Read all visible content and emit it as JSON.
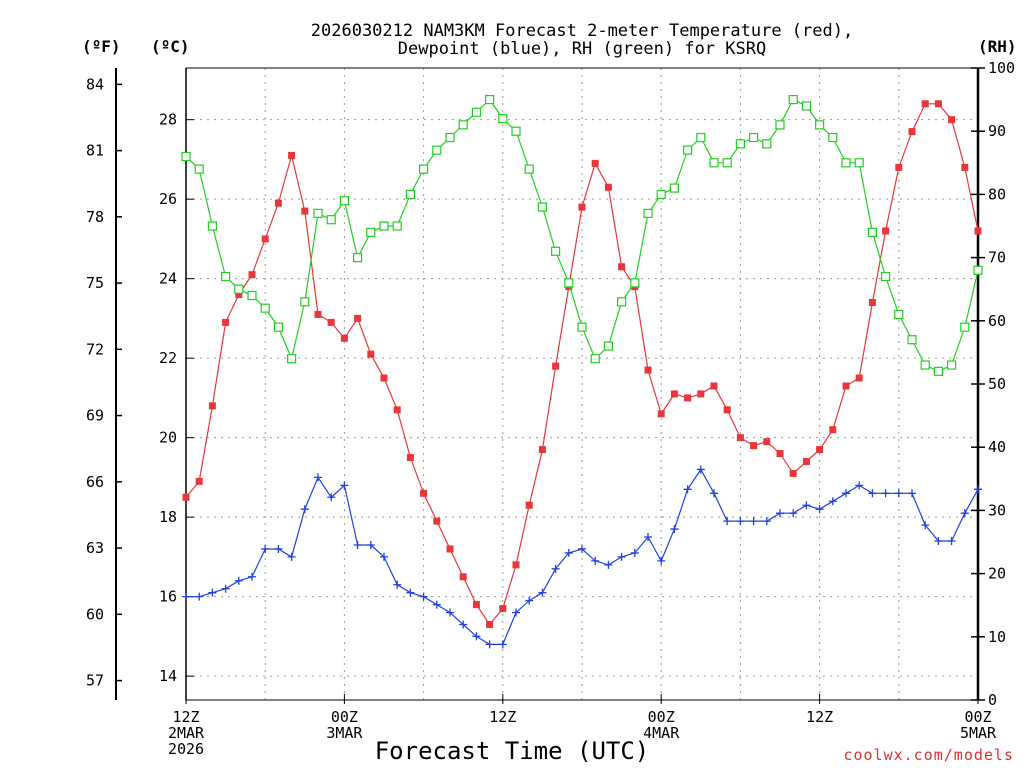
{
  "chart_data": {
    "type": "line",
    "title_lines": [
      "2026030212 NAM3KM Forecast 2-meter Temperature (red),",
      "Dewpoint (blue), RH (green) for KSRQ"
    ],
    "left_unit_f": "(ºF)",
    "left_unit_c": "(ºC)",
    "right_unit": "(RH)",
    "xlabel": "Forecast Time (UTC)",
    "credit": "coolwx.com/models",
    "x_ticks": [
      {
        "hour": 0,
        "lines": [
          "12Z",
          "2MAR",
          "2026"
        ]
      },
      {
        "hour": 12,
        "lines": [
          "00Z",
          "3MAR"
        ]
      },
      {
        "hour": 24,
        "lines": [
          "12Z"
        ]
      },
      {
        "hour": 36,
        "lines": [
          "00Z",
          "4MAR"
        ]
      },
      {
        "hour": 48,
        "lines": [
          "12Z"
        ]
      },
      {
        "hour": 60,
        "lines": [
          "00Z",
          "5MAR"
        ]
      }
    ],
    "xlim": [
      0,
      60
    ],
    "ylim_c": [
      13.4,
      29.3
    ],
    "ylim_rh": [
      0,
      100
    ],
    "f_ticks": [
      57,
      60,
      63,
      66,
      69,
      72,
      75,
      78,
      81,
      84
    ],
    "c_ticks": [
      14,
      16,
      18,
      20,
      22,
      24,
      26,
      28
    ],
    "rh_ticks": [
      0,
      10,
      20,
      30,
      40,
      50,
      60,
      70,
      80,
      90,
      100
    ],
    "series": [
      {
        "name": "2-meter Temperature",
        "unit": "C",
        "color": "#e8373a",
        "marker": "filled-square",
        "values": [
          18.5,
          18.9,
          20.8,
          22.9,
          23.6,
          24.1,
          25.0,
          25.9,
          27.1,
          25.7,
          23.1,
          22.9,
          22.5,
          23.0,
          22.1,
          21.5,
          20.7,
          19.5,
          18.6,
          17.9,
          17.2,
          16.5,
          15.8,
          15.3,
          15.7,
          16.8,
          18.3,
          19.7,
          21.8,
          23.8,
          25.8,
          26.9,
          26.3,
          24.3,
          23.8,
          21.7,
          20.6,
          21.1,
          21.0,
          21.1,
          21.3,
          20.7,
          20.0,
          19.8,
          19.9,
          19.6,
          19.1,
          19.4,
          19.7,
          20.2,
          21.3,
          21.5,
          23.4,
          25.2,
          26.8,
          27.7,
          28.4,
          28.4,
          28.0,
          26.8,
          25.2
        ]
      },
      {
        "name": "Dewpoint",
        "unit": "C",
        "color": "#2040e0",
        "marker": "plus",
        "values": [
          16.0,
          16.0,
          16.1,
          16.2,
          16.4,
          16.5,
          17.2,
          17.2,
          17.0,
          18.2,
          19.0,
          18.5,
          18.8,
          17.3,
          17.3,
          17.0,
          16.3,
          16.1,
          16.0,
          15.8,
          15.6,
          15.3,
          15.0,
          14.8,
          14.8,
          15.6,
          15.9,
          16.1,
          16.7,
          17.1,
          17.2,
          16.9,
          16.8,
          17.0,
          17.1,
          17.5,
          16.9,
          17.7,
          18.7,
          19.2,
          18.6,
          17.9,
          17.9,
          17.9,
          17.9,
          18.1,
          18.1,
          18.3,
          18.2,
          18.4,
          18.6,
          18.8,
          18.6,
          18.6,
          18.6,
          18.6,
          17.8,
          17.4,
          17.4,
          18.1,
          18.7
        ]
      },
      {
        "name": "RH",
        "unit": "%",
        "color": "#20d020",
        "marker": "open-square",
        "values": [
          86,
          84,
          75,
          67,
          65,
          64,
          62,
          59,
          54,
          63,
          77,
          76,
          79,
          70,
          74,
          75,
          75,
          80,
          84,
          87,
          89,
          91,
          93,
          95,
          92,
          90,
          84,
          78,
          71,
          66,
          59,
          54,
          56,
          63,
          66,
          77,
          80,
          81,
          87,
          89,
          85,
          85,
          88,
          89,
          88,
          91,
          95,
          94,
          91,
          89,
          85,
          85,
          74,
          67,
          61,
          57,
          53,
          52,
          53,
          59,
          68
        ]
      }
    ]
  }
}
